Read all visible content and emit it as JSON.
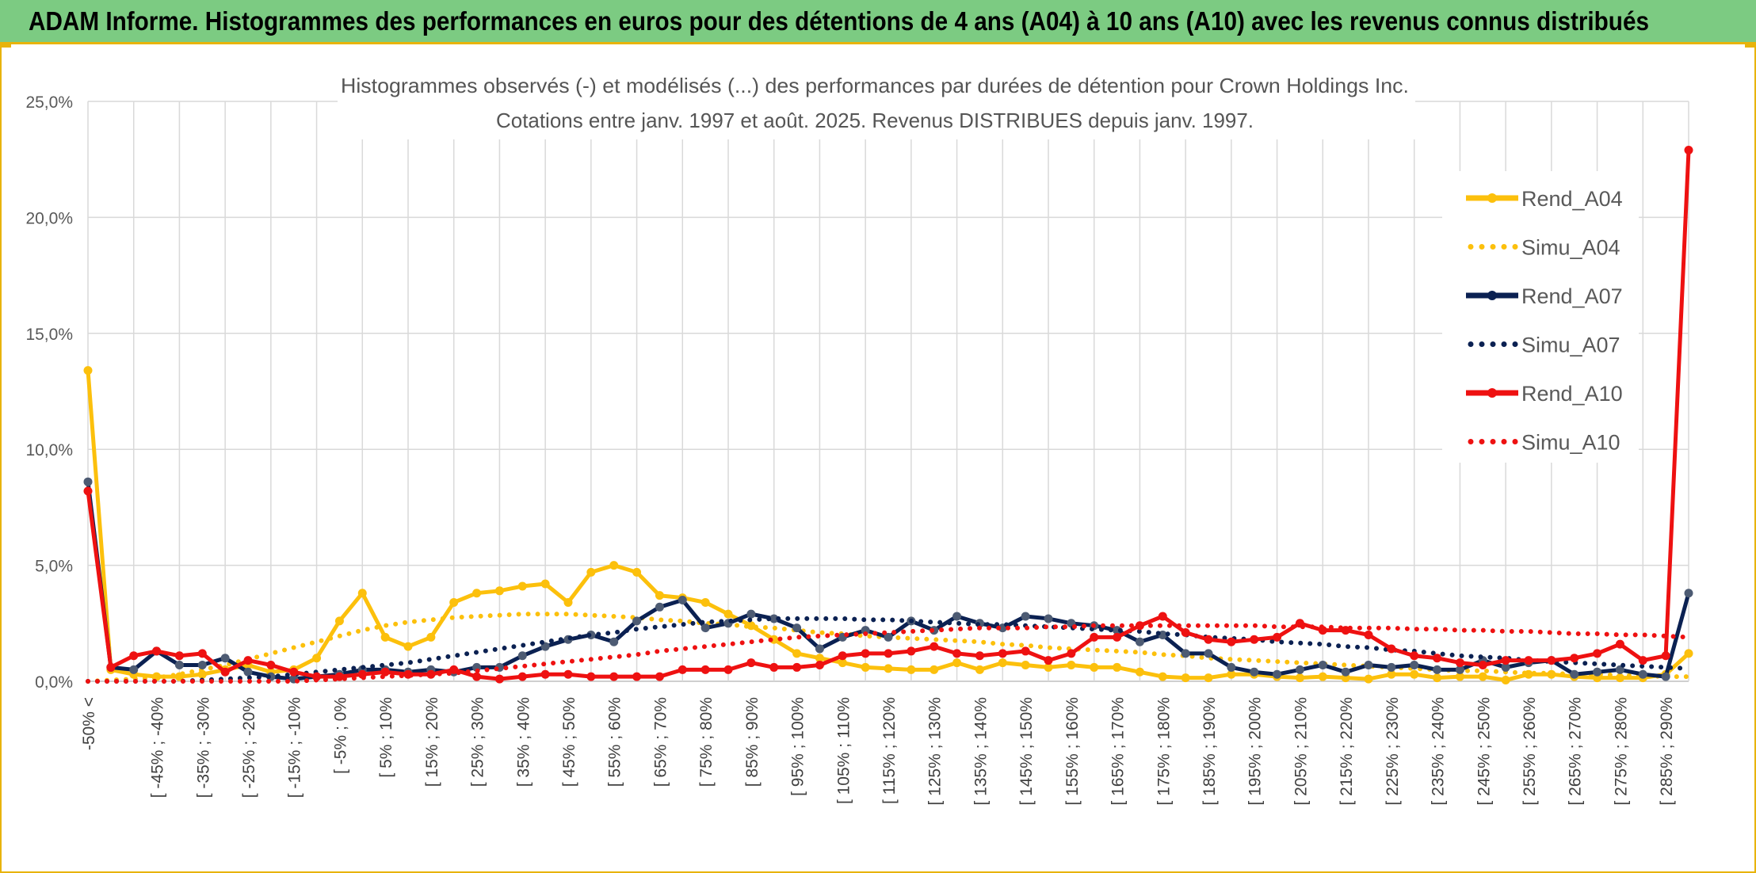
{
  "header": {
    "title": "ADAM Informe. Histogrammes des performances en euros pour des détentions de 4 ans (A04) à 10 ans (A10) avec les revenus connus distribués"
  },
  "chart_data": {
    "type": "line",
    "title": "Histogrammes observés (-) et modélisés (...) des performances par durées de détention pour Crown Holdings Inc.",
    "subtitle": "Cotations entre janv. 1997 et août. 2025. Revenus DISTRIBUES depuis janv. 1997.",
    "xlabel": "",
    "ylabel": "",
    "ylim": [
      0,
      25
    ],
    "yticks": [
      "0,0%",
      "5,0%",
      "10,0%",
      "15,0%",
      "20,0%",
      "25,0%"
    ],
    "grid": true,
    "legend_position": "right",
    "categories": [
      "-50% <",
      "[ -50% ; -45% [",
      "[ -45% ; -40% [",
      "[ -40% ; -35% [",
      "[ -35% ; -30% [",
      "[ -30% ; -25% [",
      "[ -25% ; -20% [",
      "[ -20% ; -15% [",
      "[ -15% ; -10% [",
      "[ -10% ; -5% [",
      "[ -5% ; 0% [",
      "[ 0% ; 5% [",
      "[ 5% ; 10% [",
      "[ 10% ; 15% [",
      "[ 15% ; 20% [",
      "[ 20% ; 25% [",
      "[ 25% ; 30% [",
      "[ 30% ; 35% [",
      "[ 35% ; 40% [",
      "[ 40% ; 45% [",
      "[ 45% ; 50% [",
      "[ 50% ; 55% [",
      "[ 55% ; 60% [",
      "[ 60% ; 65% [",
      "[ 65% ; 70% [",
      "[ 70% ; 75% [",
      "[ 75% ; 80% [",
      "[ 80% ; 85% [",
      "[ 85% ; 90% [",
      "[ 90% ; 95% [",
      "[ 95% ; 100% [",
      "[ 100% ; 105% [",
      "[ 105% ; 110% [",
      "[ 110% ; 115% [",
      "[ 115% ; 120% [",
      "[ 120% ; 125% [",
      "[ 125% ; 130% [",
      "[ 130% ; 135% [",
      "[ 135% ; 140% [",
      "[ 140% ; 145% [",
      "[ 145% ; 150% [",
      "[ 150% ; 155% [",
      "[ 155% ; 160% [",
      "[ 160% ; 165% [",
      "[ 165% ; 170% [",
      "[ 170% ; 175% [",
      "[ 175% ; 180% [",
      "[ 180% ; 185% [",
      "[ 185% ; 190% [",
      "[ 190% ; 195% [",
      "[ 195% ; 200% [",
      "[ 200% ; 205% [",
      "[ 205% ; 210% [",
      "[ 210% ; 215% [",
      "[ 215% ; 220% [",
      "[ 220% ; 225% [",
      "[ 225% ; 230% [",
      "[ 230% ; 235% [",
      "[ 235% ; 240% [",
      "[ 240% ; 245% [",
      "[ 245% ; 250% [",
      "[ 250% ; 255% [",
      "[ 255% ; 260% [",
      "[ 260% ; 265% [",
      "[ 265% ; 270% [",
      "[ 270% ; 275% [",
      "[ 275% ; 280% [",
      "[ 280% ; 285% [",
      "[ 285% ; 290% [",
      "[ 290% ; 295% [",
      "[ 295% ; 300% ["
    ],
    "visible_tick_labels": [
      "-50% <",
      "[ -45% ; -40%",
      "[ -35% ; -30%",
      "[ -25% ; -20%",
      "[ -15% ; -10%",
      "[ -5% ; 0%",
      "[ 5% ; 10%",
      "[ 15% ; 20%",
      "[ 25% ; 30%",
      "[ 35% ; 40%",
      "[ 45% ; 50%",
      "[ 55% ; 60%",
      "[ 65% ; 70%",
      "[ 75% ; 80%",
      "[ 85% ; 90%",
      "[ 95% ; 100%",
      "[ 105% ; 110%",
      "[ 115% ; 120%",
      "[ 125% ; 130%",
      "[ 135% ; 140%",
      "[ 145% ; 150%",
      "[ 155% ; 160%",
      "[ 165% ; 170%",
      "[ 175% ; 180%",
      "[ 185% ; 190%",
      "[ 195% ; 200%",
      "[ 205% ; 210%",
      "[ 215% ; 220%",
      "[ 225% ; 230%",
      "[ 235% ; 240%",
      "[ 245% ; 250%",
      "[ 255% ; 260%",
      "[ 265% ; 270%",
      "[ 275% ; 280%",
      "[ 285% ; 290%"
    ],
    "series": [
      {
        "name": "Rend_A04",
        "style": "solid",
        "color": "#fcc00c",
        "values": [
          13.4,
          0.5,
          0.3,
          0.2,
          0.2,
          0.3,
          0.5,
          0.7,
          0.4,
          0.5,
          1.0,
          2.6,
          3.8,
          1.9,
          1.5,
          1.9,
          3.4,
          3.8,
          3.9,
          4.1,
          4.2,
          3.4,
          4.7,
          5.0,
          4.7,
          3.7,
          3.6,
          3.4,
          2.9,
          2.4,
          1.8,
          1.2,
          1.0,
          0.8,
          0.6,
          0.55,
          0.5,
          0.5,
          0.8,
          0.5,
          0.8,
          0.7,
          0.6,
          0.7,
          0.6,
          0.6,
          0.4,
          0.2,
          0.15,
          0.15,
          0.3,
          0.3,
          0.2,
          0.15,
          0.2,
          0.15,
          0.1,
          0.3,
          0.3,
          0.15,
          0.2,
          0.2,
          0.05,
          0.3,
          0.3,
          0.2,
          0.15,
          0.15,
          0.15,
          0.3,
          1.2
        ]
      },
      {
        "name": "Simu_A04",
        "style": "dotted",
        "color": "#fcc00c",
        "values": [
          0.0,
          0.05,
          0.1,
          0.15,
          0.3,
          0.5,
          0.7,
          0.95,
          1.2,
          1.45,
          1.7,
          1.95,
          2.2,
          2.4,
          2.55,
          2.65,
          2.75,
          2.8,
          2.85,
          2.9,
          2.9,
          2.9,
          2.85,
          2.8,
          2.75,
          2.65,
          2.6,
          2.5,
          2.45,
          2.35,
          2.3,
          2.2,
          2.1,
          2.05,
          1.95,
          1.9,
          1.85,
          1.8,
          1.75,
          1.7,
          1.6,
          1.55,
          1.45,
          1.4,
          1.35,
          1.3,
          1.25,
          1.15,
          1.1,
          1.0,
          0.95,
          0.9,
          0.85,
          0.8,
          0.75,
          0.7,
          0.65,
          0.6,
          0.55,
          0.5,
          0.45,
          0.45,
          0.4,
          0.35,
          0.35,
          0.3,
          0.3,
          0.25,
          0.25,
          0.2,
          0.2
        ]
      },
      {
        "name": "Rend_A07",
        "style": "solid",
        "color": "#0b2152",
        "values": [
          8.6,
          0.6,
          0.5,
          1.3,
          0.7,
          0.7,
          1.0,
          0.4,
          0.2,
          0.1,
          0.2,
          0.3,
          0.5,
          0.5,
          0.4,
          0.5,
          0.4,
          0.6,
          0.6,
          1.1,
          1.5,
          1.8,
          2.0,
          1.7,
          2.6,
          3.2,
          3.5,
          2.3,
          2.5,
          2.9,
          2.7,
          2.3,
          1.4,
          1.9,
          2.2,
          1.9,
          2.6,
          2.2,
          2.8,
          2.5,
          2.3,
          2.8,
          2.7,
          2.5,
          2.4,
          2.2,
          1.7,
          2.0,
          1.2,
          1.2,
          0.6,
          0.4,
          0.3,
          0.5,
          0.7,
          0.4,
          0.7,
          0.6,
          0.7,
          0.5,
          0.5,
          0.9,
          0.6,
          0.8,
          0.9,
          0.3,
          0.4,
          0.5,
          0.3,
          0.2,
          3.8
        ]
      },
      {
        "name": "Simu_A07",
        "style": "dotted",
        "color": "#0b2152",
        "values": [
          0.0,
          0.0,
          0.0,
          0.0,
          0.0,
          0.05,
          0.1,
          0.15,
          0.2,
          0.3,
          0.4,
          0.5,
          0.6,
          0.7,
          0.8,
          0.95,
          1.1,
          1.25,
          1.4,
          1.55,
          1.7,
          1.85,
          2.0,
          2.1,
          2.25,
          2.35,
          2.45,
          2.55,
          2.6,
          2.65,
          2.7,
          2.7,
          2.7,
          2.7,
          2.65,
          2.65,
          2.6,
          2.55,
          2.5,
          2.45,
          2.45,
          2.4,
          2.35,
          2.3,
          2.25,
          2.2,
          2.15,
          2.05,
          2.0,
          1.9,
          1.85,
          1.8,
          1.7,
          1.65,
          1.6,
          1.5,
          1.45,
          1.35,
          1.3,
          1.2,
          1.1,
          1.05,
          1.0,
          0.9,
          0.85,
          0.8,
          0.75,
          0.7,
          0.65,
          0.6,
          0.55
        ]
      },
      {
        "name": "Rend_A10",
        "style": "solid",
        "color": "#ee1111",
        "values": [
          8.2,
          0.6,
          1.1,
          1.3,
          1.1,
          1.2,
          0.4,
          0.9,
          0.7,
          0.4,
          0.2,
          0.2,
          0.3,
          0.4,
          0.3,
          0.3,
          0.5,
          0.2,
          0.1,
          0.2,
          0.3,
          0.3,
          0.2,
          0.2,
          0.2,
          0.2,
          0.5,
          0.5,
          0.5,
          0.8,
          0.6,
          0.6,
          0.7,
          1.1,
          1.2,
          1.2,
          1.3,
          1.5,
          1.2,
          1.1,
          1.2,
          1.3,
          0.9,
          1.2,
          1.9,
          1.9,
          2.4,
          2.8,
          2.1,
          1.8,
          1.7,
          1.8,
          1.9,
          2.5,
          2.2,
          2.2,
          2.0,
          1.4,
          1.1,
          1.0,
          0.8,
          0.7,
          0.9,
          0.9,
          0.9,
          1.0,
          1.2,
          1.6,
          0.9,
          1.1,
          22.9
        ]
      },
      {
        "name": "Simu_A10",
        "style": "dotted",
        "color": "#ee1111",
        "values": [
          0.0,
          0.0,
          0.0,
          0.0,
          0.0,
          0.0,
          0.0,
          0.0,
          0.0,
          0.0,
          0.05,
          0.1,
          0.15,
          0.2,
          0.25,
          0.3,
          0.35,
          0.45,
          0.55,
          0.65,
          0.75,
          0.85,
          0.95,
          1.05,
          1.15,
          1.3,
          1.4,
          1.5,
          1.6,
          1.7,
          1.8,
          1.9,
          1.95,
          2.0,
          2.05,
          2.1,
          2.15,
          2.2,
          2.25,
          2.3,
          2.3,
          2.3,
          2.35,
          2.35,
          2.4,
          2.4,
          2.4,
          2.4,
          2.4,
          2.4,
          2.4,
          2.4,
          2.35,
          2.35,
          2.35,
          2.3,
          2.3,
          2.3,
          2.25,
          2.25,
          2.2,
          2.2,
          2.15,
          2.15,
          2.1,
          2.05,
          2.05,
          2.0,
          2.0,
          1.95,
          1.9
        ]
      }
    ]
  }
}
